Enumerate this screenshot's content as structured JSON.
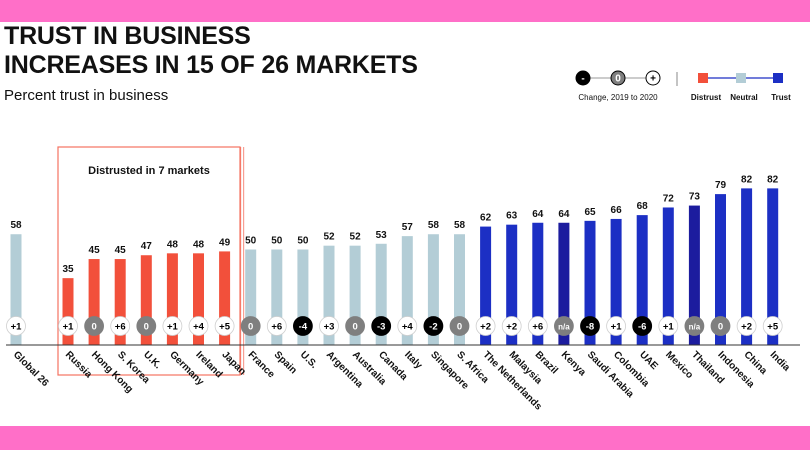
{
  "title": "TRUST IN BUSINESS\nINCREASES IN 15 OF 26 MARKETS",
  "subtitle": "Percent trust in business",
  "legend": {
    "change_symbols": [
      "-",
      "0",
      "+"
    ],
    "change_label": "Change, 2019 to 2020",
    "categories": [
      {
        "label": "Distrust",
        "color": "#f2503b"
      },
      {
        "label": "Neutral",
        "color": "#b3cdd6"
      },
      {
        "label": "Trust",
        "color": "#1c2fc4"
      }
    ]
  },
  "callout": {
    "label": "Distrusted in 7 markets"
  },
  "chart_data": {
    "type": "bar",
    "title": "TRUST IN BUSINESS INCREASES IN 15 OF 26 MARKETS",
    "ylabel": "Percent trust in business",
    "ylim": [
      0,
      100
    ],
    "grid": false,
    "legend_position": "top-right",
    "categories": [
      "Global 26",
      "Russia",
      "Hong Kong",
      "S. Korea",
      "U.K.",
      "Germany",
      "Ireland",
      "Japan",
      "France",
      "Spain",
      "U.S.",
      "Argentina",
      "Australia",
      "Canada",
      "Italy",
      "Singapore",
      "S. Africa",
      "The Netherlands",
      "Malaysia",
      "Brazil",
      "Kenya",
      "Saudi Arabia",
      "Colombia",
      "UAE",
      "Mexico",
      "Thailand",
      "Indonesia",
      "China",
      "India"
    ],
    "values": [
      58,
      35,
      45,
      45,
      47,
      48,
      48,
      49,
      50,
      50,
      50,
      52,
      52,
      53,
      57,
      58,
      58,
      62,
      63,
      64,
      64,
      65,
      66,
      68,
      72,
      73,
      79,
      82,
      82
    ],
    "changes": [
      "+1",
      "+1",
      "0",
      "+6",
      "0",
      "+1",
      "+4",
      "+5",
      "0",
      "+6",
      "-4",
      "+3",
      "0",
      "-3",
      "+4",
      "-2",
      "0",
      "+2",
      "+2",
      "+6",
      "n/a",
      "-8",
      "+1",
      "-6",
      "+1",
      "n/a",
      "0",
      "+2",
      "+5"
    ],
    "bar_class": [
      "neutral",
      "distrust",
      "distrust",
      "distrust",
      "distrust",
      "distrust",
      "distrust",
      "distrust",
      "neutral",
      "neutral",
      "neutral",
      "neutral",
      "neutral",
      "neutral",
      "neutral",
      "neutral",
      "neutral",
      "trust",
      "trust",
      "trust",
      "trust_dark",
      "trust",
      "trust",
      "trust",
      "trust",
      "trust_dark",
      "trust",
      "trust",
      "trust"
    ],
    "colors": {
      "distrust": "#f2503b",
      "neutral": "#b3cdd6",
      "trust": "#1c2fc4",
      "trust_dark": "#1c1c9e"
    },
    "change_colors": {
      "positive": "#ffffff",
      "zero": "#7f7f7f",
      "negative": "#000000",
      "na": "#7f7f7f"
    }
  }
}
